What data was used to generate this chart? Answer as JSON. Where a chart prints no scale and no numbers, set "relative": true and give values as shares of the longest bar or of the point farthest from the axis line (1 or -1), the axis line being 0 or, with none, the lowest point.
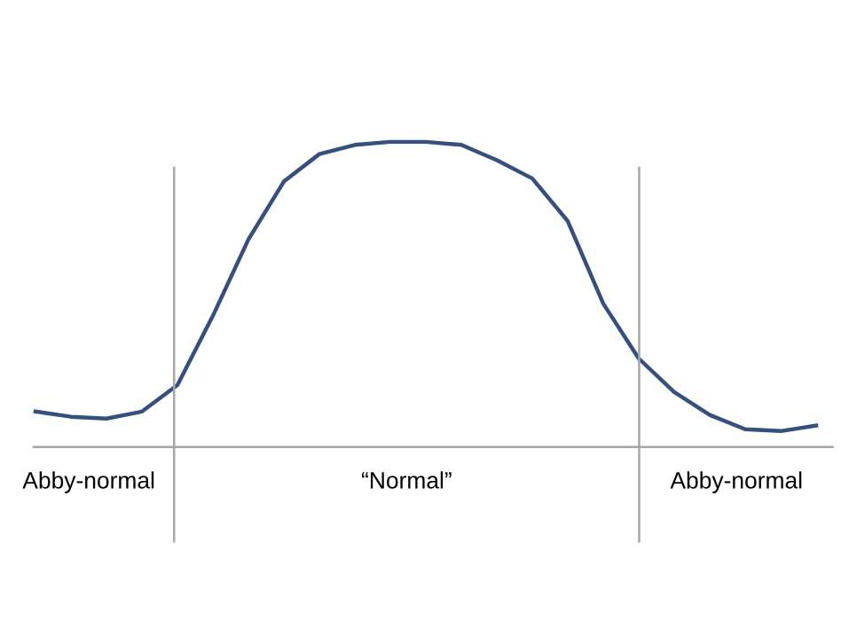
{
  "chart_data": {
    "type": "line",
    "relative": true,
    "categories": [
      null,
      null,
      null,
      null,
      null,
      null,
      null,
      null,
      null,
      null,
      null,
      null,
      null,
      null,
      null,
      null,
      null,
      null,
      null,
      null,
      null,
      null,
      null
    ],
    "series": [
      {
        "color": "#35507f",
        "values": [
          0.116,
          0.099,
          0.093,
          0.116,
          0.203,
          0.43,
          0.68,
          0.87,
          0.96,
          0.99,
          1,
          1,
          0.99,
          0.94,
          0.88,
          0.74,
          0.47,
          0.29,
          0.18,
          0.105,
          0.058,
          0.052,
          0.07
        ]
      }
    ],
    "annotations": [
      "Abby-normal",
      "“Normal”",
      "Abby-normal"
    ],
    "legend": false,
    "marker": "none",
    "line_style": "solid"
  }
}
